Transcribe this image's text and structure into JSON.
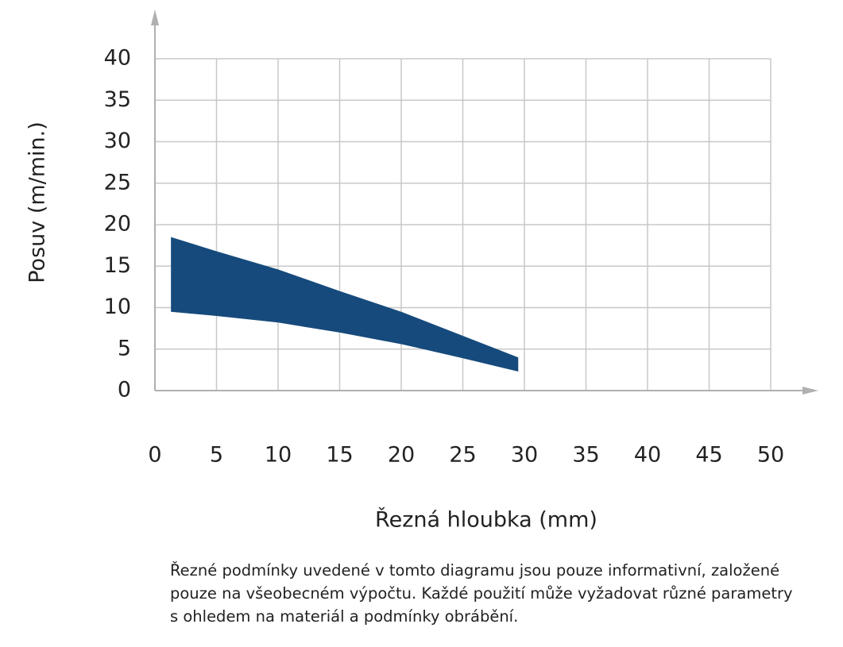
{
  "chart_data": {
    "type": "area",
    "x_label": "Řezná hloubka (mm)",
    "y_label": "Posuv (m/min.)",
    "x": [
      1.3,
      5,
      10,
      15,
      20,
      25,
      29.5
    ],
    "high": [
      18.5,
      16.8,
      14.6,
      12,
      9.5,
      6.6,
      4
    ],
    "low": [
      9.5,
      9,
      8.2,
      7,
      5.6,
      3.9,
      2.3
    ],
    "color": "#164a7c",
    "xlim": [
      0,
      50
    ],
    "xticks": [
      0,
      5,
      10,
      15,
      20,
      25,
      30,
      35,
      40,
      45,
      50
    ],
    "ylim": [
      0,
      40
    ],
    "yticks": [
      0,
      5,
      10,
      15,
      20,
      25,
      30,
      35,
      40
    ],
    "grid": true,
    "note": "Řezné podmínky uvedené v tomto diagramu jsou pouze informativní, založené pouze na všeobecném výpočtu. Každé použití může vyžadovat různé parametry s ohledem na materiál a podmínky obrábění."
  }
}
